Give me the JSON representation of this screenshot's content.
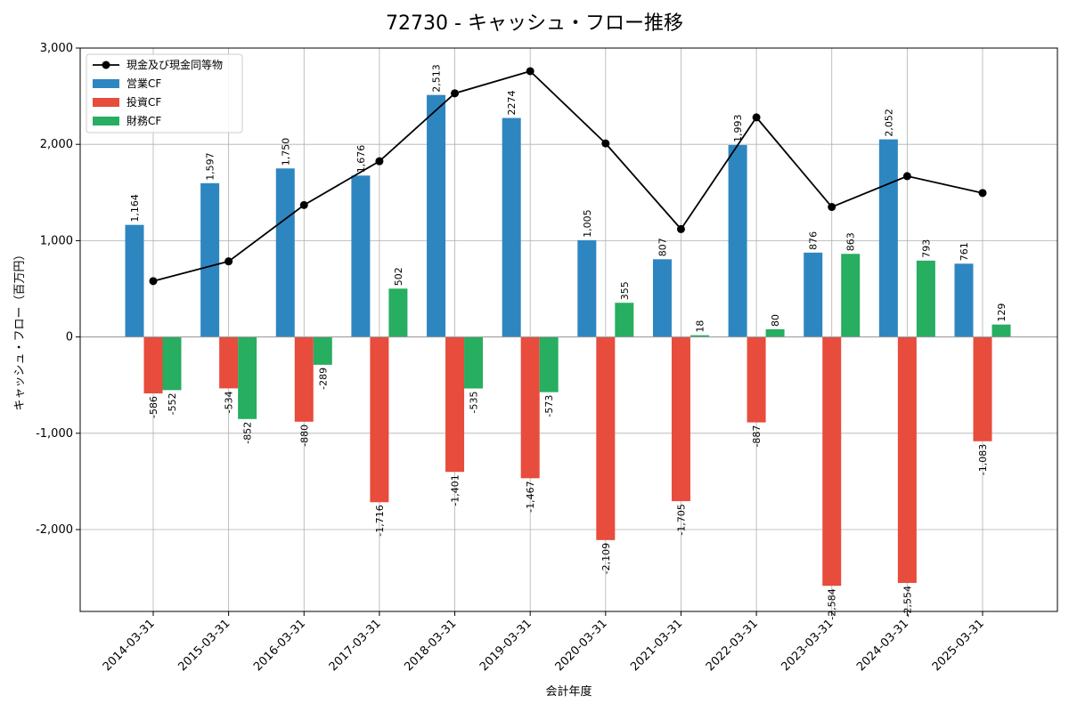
{
  "chart_data": {
    "type": "bar",
    "title": "72730 - キャッシュ・フロー推移",
    "xlabel": "会計年度",
    "ylabel": "キャッシュ・フロー（百万円）",
    "categories": [
      "2014-03-31",
      "2015-03-31",
      "2016-03-31",
      "2017-03-31",
      "2018-03-31",
      "2019-03-31",
      "2020-03-31",
      "2021-03-31",
      "2022-03-31",
      "2023-03-31",
      "2024-03-31",
      "2025-03-31"
    ],
    "series": [
      {
        "name": "営業CF",
        "kind": "bar",
        "color": "#2e86c1",
        "values": [
          1164,
          1597,
          1750,
          1676,
          2513,
          2274,
          1005,
          807,
          1993,
          876,
          2052,
          761
        ],
        "labels": [
          "1,164",
          "1,597",
          "1,750",
          "1,676",
          "2,513",
          "2274",
          "1,005",
          "807",
          "1,993",
          "876",
          "2,052",
          "761"
        ]
      },
      {
        "name": "投資CF",
        "kind": "bar",
        "color": "#e74c3c",
        "values": [
          -586,
          -534,
          -880,
          -1716,
          -1401,
          -1467,
          -2109,
          -1705,
          -887,
          -2584,
          -2554,
          -1083
        ],
        "labels": [
          "-586",
          "-534",
          "-880",
          "-1,716",
          "-1,401",
          "-1,467",
          "-2,109",
          "-1,705",
          "-887",
          "-2,584",
          "-2,554",
          "-1,083"
        ]
      },
      {
        "name": "財務CF",
        "kind": "bar",
        "color": "#27ae60",
        "values": [
          -552,
          -852,
          -289,
          502,
          -535,
          -573,
          355,
          18,
          80,
          863,
          793,
          129
        ],
        "labels": [
          "-552",
          "-852",
          "-289",
          "502",
          "-535",
          "-573",
          "355",
          "18",
          "80",
          "863",
          "793",
          "129"
        ]
      },
      {
        "name": "現金及び現金同等物",
        "kind": "line",
        "color": "#000000",
        "values": [
          580,
          785,
          1370,
          1825,
          2530,
          2760,
          2010,
          1120,
          2280,
          1350,
          1670,
          1495
        ]
      }
    ],
    "ylim": [
      -2850,
      3000
    ],
    "yticks": [
      3000,
      2000,
      1000,
      0,
      -1000,
      -2000
    ],
    "ytick_labels": [
      "3,000",
      "2,000",
      "1,000",
      "0",
      "-1,000",
      "-2,000"
    ],
    "grid": true,
    "legend_position": "top-left"
  }
}
